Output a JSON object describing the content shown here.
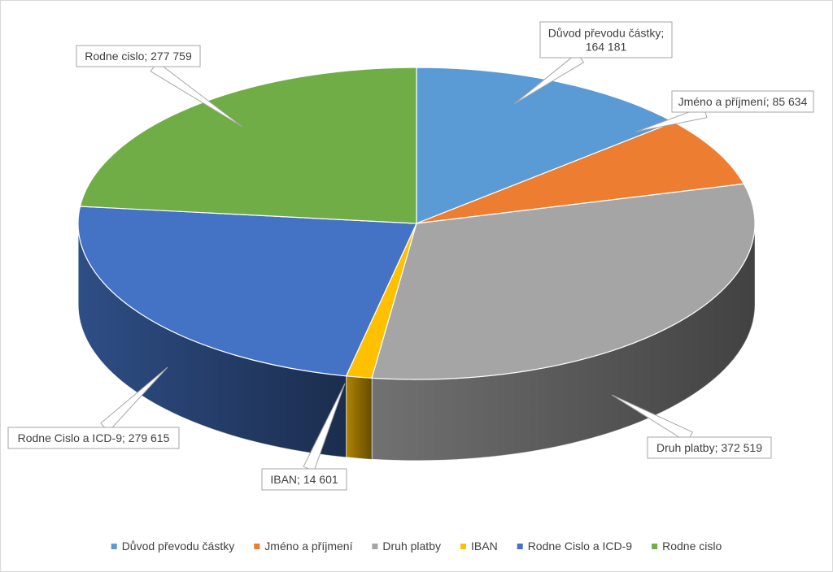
{
  "chart_data": {
    "type": "pie",
    "variant": "3d",
    "legend": "bottom",
    "categories": [
      "Důvod převodu částky",
      "Jméno a příjmení",
      "Druh platby",
      "IBAN",
      "Rodne Cislo a ICD-9",
      "Rodne cislo"
    ],
    "values": [
      164181,
      85634,
      372519,
      14601,
      279615,
      277759
    ],
    "colors": [
      "#5b9bd5",
      "#ed7d31",
      "#a5a5a5",
      "#ffc000",
      "#4472c4",
      "#70ad47"
    ],
    "data_labels": [
      {
        "lines": [
          "Důvod převodu částky;",
          "164 181"
        ]
      },
      {
        "lines": [
          "Jméno a příjmení; 85 634"
        ]
      },
      {
        "lines": [
          "Druh platby; 372 519"
        ]
      },
      {
        "lines": [
          "IBAN; 14 601"
        ]
      },
      {
        "lines": [
          "Rodne Cislo a ICD-9; 279 615"
        ]
      },
      {
        "lines": [
          "Rodne cislo; 277 759"
        ]
      }
    ]
  }
}
